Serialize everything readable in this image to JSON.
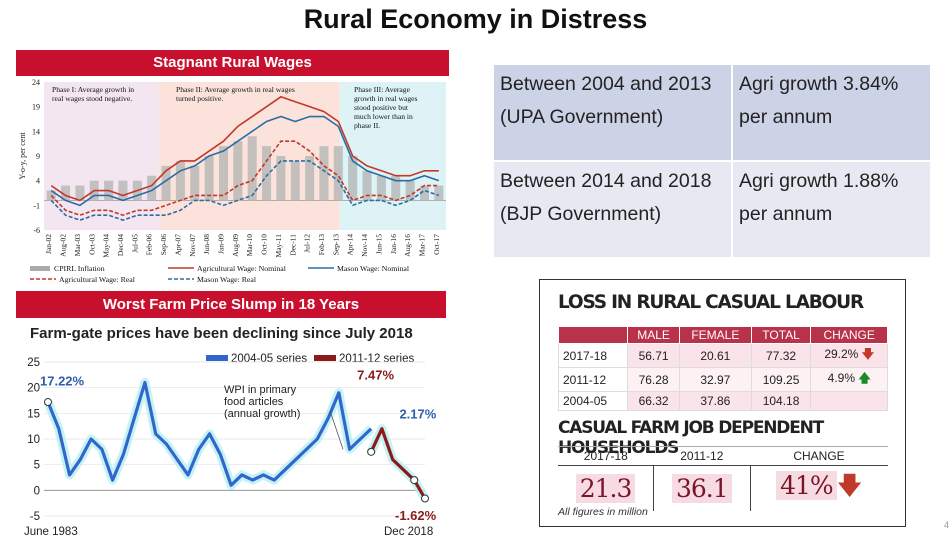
{
  "title": "Rural Economy in Distress",
  "wages_panel": {
    "header": "Stagnant Rural Wages",
    "y_label": "Y-o-y, per cent",
    "y_ticks": [
      "24",
      "19",
      "14",
      "9",
      "4",
      "-1",
      "-6"
    ],
    "x_ticks": [
      "Jan-02",
      "Aug-02",
      "Mar-03",
      "Oct-03",
      "May-04",
      "Dec-04",
      "Jul-05",
      "Feb-06",
      "Sep-06",
      "Apr-07",
      "Nov-07",
      "Jun-08",
      "Jan-09",
      "Aug-09",
      "Mar-10",
      "Oct-10",
      "May-11",
      "Dec-11",
      "Jul-12",
      "Feb-13",
      "Sep-13",
      "Apr-14",
      "Nov-14",
      "Jun-15",
      "Jan-16",
      "Aug-16",
      "Mar-17",
      "Oct-17"
    ],
    "phase1": "Phase I: Average growth in real wages stood negative.",
    "phase1_label": "Phase I:",
    "phase1_text": "Average growth in real wages stood negative.",
    "phase2_label": "Phase II:",
    "phase2_text": "Average growth in real wages turned positive.",
    "phase3_label": "Phase III:",
    "phase3_text": "Average growth in real wages stood positive but much lower than in phase II.",
    "legend": {
      "cpirl": "CPIRL Inflation",
      "agri_nominal": "Agricultural Wage: Nominal",
      "mason_nominal": "Mason Wage: Nominal",
      "agri_real": "Agricultural Wage: Real",
      "mason_real": "Mason Wage: Real"
    }
  },
  "growth_table": [
    {
      "period": "Between 2004 and 2013 (UPA Government)",
      "growth": "Agri growth 3.84% per annum"
    },
    {
      "period": "Between 2014 and 2018 (BJP Government)",
      "growth": "Agri growth 1.88% per annum"
    }
  ],
  "farm_panel": {
    "header": "Worst Farm Price Slump in 18 Years",
    "subtitle": "Farm-gate prices have been declining since July 2018",
    "legend_2004": "2004-05 series",
    "legend_2011": "2011-12 series",
    "annotation": "WPI in primary food articles (annual growth)",
    "label_start": "17.22%",
    "label_peak": "7.47%",
    "label_217": "2.17%",
    "label_end": "-1.62%",
    "x_start": "June 1983",
    "x_end": "Dec 2018",
    "y_ticks": [
      "25",
      "20",
      "15",
      "10",
      "5",
      "0",
      "-5"
    ]
  },
  "loss_panel": {
    "title": "LOSS IN RURAL CASUAL LABOUR",
    "headers": [
      "",
      "MALE",
      "FEMALE",
      "TOTAL",
      "CHANGE"
    ],
    "rows": [
      {
        "year": "2017-18",
        "male": "56.71",
        "female": "20.61",
        "total": "77.32",
        "change": "29.2%"
      },
      {
        "year": "2011-12",
        "male": "76.28",
        "female": "32.97",
        "total": "109.25",
        "change": "4.9%"
      },
      {
        "year": "2004-05",
        "male": "66.32",
        "female": "37.86",
        "total": "104.18",
        "change": ""
      }
    ],
    "hh_title": "CASUAL FARM JOB DEPENDENT HOUSEHOLDS",
    "hh_headers": [
      "2017-18",
      "2011-12",
      "CHANGE"
    ],
    "hh_values": [
      "21.3",
      "36.1",
      "41%"
    ],
    "note": "All figures in million"
  },
  "page_number": "4",
  "colors": {
    "panel_red": "#c8102e",
    "agri_red": "#c0392b",
    "mason_blue": "#2e6da4",
    "cpirl_grey": "#aaaaaa",
    "series_2004": "#3366cc",
    "series_2011": "#8b1a1a",
    "table_red": "#b8324a"
  },
  "chart_data": [
    {
      "type": "line",
      "title": "Stagnant Rural Wages",
      "ylabel": "Y-o-y, per cent",
      "ylim": [
        -6,
        24
      ],
      "categories": [
        "Jan-02",
        "Aug-02",
        "Mar-03",
        "Oct-03",
        "May-04",
        "Dec-04",
        "Jul-05",
        "Feb-06",
        "Sep-06",
        "Apr-07",
        "Nov-07",
        "Jun-08",
        "Jan-09",
        "Aug-09",
        "Mar-10",
        "Oct-10",
        "May-11",
        "Dec-11",
        "Jul-12",
        "Feb-13",
        "Sep-13",
        "Apr-14",
        "Nov-14",
        "Jun-15",
        "Jan-16",
        "Aug-16",
        "Mar-17",
        "Oct-17"
      ],
      "series": [
        {
          "name": "CPIRL Inflation",
          "kind": "bar",
          "values": [
            2,
            3,
            3,
            4,
            4,
            4,
            4,
            5,
            7,
            8,
            7,
            9,
            11,
            12,
            13,
            11,
            9,
            8,
            9,
            11,
            11,
            9,
            6,
            5,
            5,
            4,
            3,
            3
          ]
        },
        {
          "name": "Agricultural Wage: Nominal",
          "values": [
            3,
            1,
            0,
            2,
            2,
            1,
            2,
            3,
            6,
            8,
            8,
            10,
            12,
            15,
            17,
            19,
            21,
            20,
            19,
            18,
            16,
            9,
            7,
            6,
            5,
            5,
            6,
            6
          ]
        },
        {
          "name": "Mason Wage: Nominal",
          "values": [
            2,
            0,
            -1,
            1,
            1,
            0,
            1,
            2,
            4,
            6,
            7,
            9,
            10,
            12,
            14,
            16,
            17,
            16,
            17,
            17,
            15,
            8,
            6,
            5,
            4,
            4,
            5,
            4
          ]
        },
        {
          "name": "Agricultural Wage: Real",
          "values": [
            1,
            -2,
            -3,
            -2,
            -2,
            -3,
            -2,
            -2,
            -1,
            0,
            1,
            1,
            1,
            3,
            4,
            8,
            12,
            12,
            10,
            7,
            5,
            0,
            1,
            1,
            0,
            1,
            3,
            3
          ]
        },
        {
          "name": "Mason Wage: Real",
          "values": [
            0,
            -3,
            -4,
            -3,
            -3,
            -4,
            -3,
            -3,
            -3,
            -2,
            0,
            0,
            -1,
            0,
            1,
            5,
            8,
            8,
            8,
            6,
            4,
            -1,
            0,
            0,
            -1,
            0,
            2,
            1
          ]
        }
      ]
    },
    {
      "type": "line",
      "title": "Farm-gate prices have been declining since July 2018",
      "ylim": [
        -5,
        25
      ],
      "x_range": [
        "June 1983",
        "Dec 2018"
      ],
      "x": [
        1983.5,
        1984.5,
        1985.5,
        1986.5,
        1987.5,
        1988.5,
        1989.5,
        1990.5,
        1991.5,
        1992.5,
        1993.5,
        1994.5,
        1995.5,
        1996.5,
        1997.5,
        1998.5,
        1999.5,
        2000.5,
        2001.5,
        2002.5,
        2003.5,
        2004.5,
        2005.5,
        2006.5,
        2007.5,
        2008.5,
        2009.5,
        2010.5,
        2011.5,
        2012.5,
        2013.5,
        2014.5,
        2015.5,
        2016.5,
        2017.5,
        2018.5
      ],
      "series": [
        {
          "name": "2004-05 series",
          "values": [
            17.2,
            12,
            3,
            6,
            10,
            8,
            2,
            7,
            14,
            21,
            11,
            9,
            6,
            3,
            8,
            11,
            7,
            1,
            3,
            2,
            3,
            2,
            4,
            6,
            8,
            10,
            14,
            19,
            8,
            10,
            12,
            null,
            null,
            null,
            null,
            null
          ]
        },
        {
          "name": "2011-12 series",
          "values": [
            null,
            null,
            null,
            null,
            null,
            null,
            null,
            null,
            null,
            null,
            null,
            null,
            null,
            null,
            null,
            null,
            null,
            null,
            null,
            null,
            null,
            null,
            null,
            null,
            null,
            null,
            null,
            null,
            null,
            null,
            7.5,
            12,
            6,
            4,
            2,
            -1.6
          ]
        }
      ]
    }
  ]
}
